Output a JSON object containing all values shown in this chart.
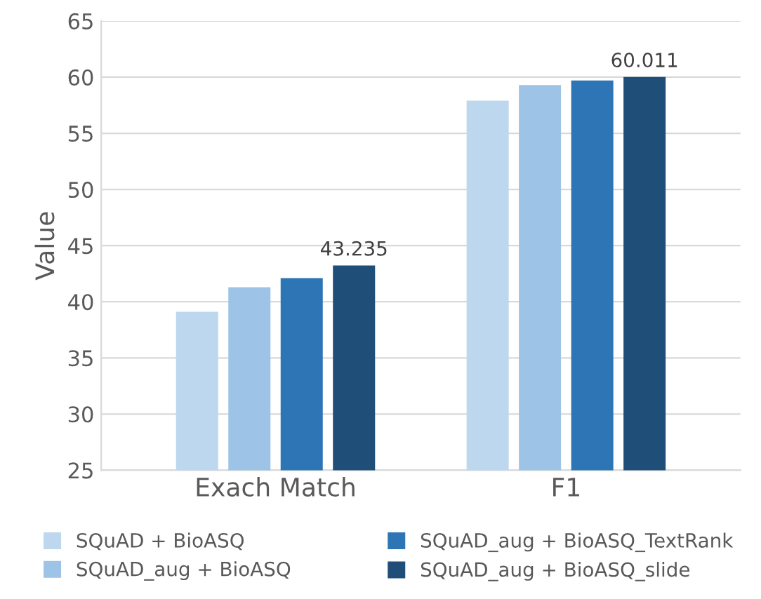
{
  "chart_data": {
    "type": "bar",
    "ylabel": "Value",
    "categories": [
      "Exach Match",
      "F1"
    ],
    "series": [
      {
        "name": "SQuAD + BioASQ",
        "color": "#bdd7ee",
        "values": [
          39.1,
          57.9
        ]
      },
      {
        "name": "SQuAD_aug + BioASQ",
        "color": "#9dc3e6",
        "values": [
          41.3,
          59.3
        ]
      },
      {
        "name": "SQuAD_aug + BioASQ_TextRank",
        "color": "#2e75b6",
        "values": [
          42.1,
          59.7
        ]
      },
      {
        "name": "SQuAD_aug + BioASQ_slide",
        "color": "#1f4e79",
        "values": [
          43.235,
          60.011
        ],
        "value_labels": [
          "43.235",
          "60.011"
        ]
      }
    ],
    "ylim": [
      25,
      65
    ],
    "yticks": [
      25,
      30,
      35,
      40,
      45,
      50,
      55,
      60,
      65
    ],
    "grid": "y",
    "legend": "bottom"
  }
}
